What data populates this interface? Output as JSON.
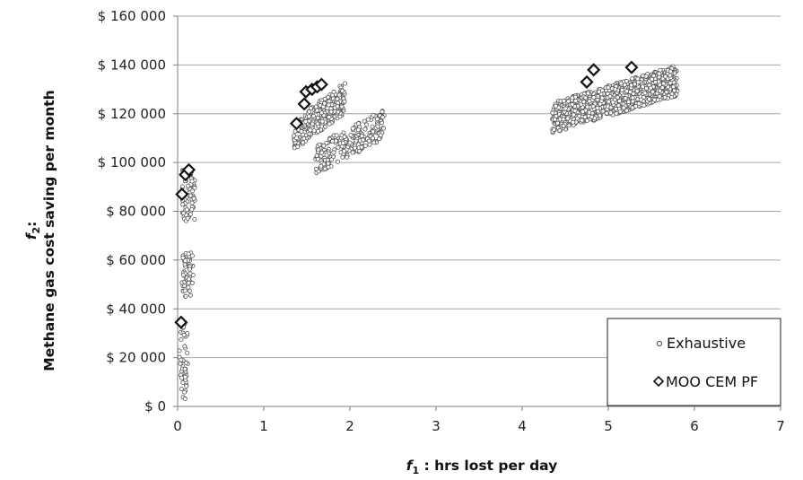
{
  "chart_data": {
    "type": "scatter",
    "title": "",
    "xlabel_var": "f",
    "xlabel_sub": "1",
    "xlabel_rest": " : hrs lost per day",
    "ylabel_var": "f",
    "ylabel_sub": "2",
    "ylabel_colon": ":",
    "ylabel_rest": "Methane gas cost saving per month",
    "xlim": [
      0,
      7
    ],
    "ylim": [
      0,
      160000
    ],
    "x_ticks": [
      0,
      1,
      2,
      3,
      4,
      5,
      6,
      7
    ],
    "x_tick_labels": [
      "0",
      "1",
      "2",
      "3",
      "4",
      "5",
      "6",
      "7"
    ],
    "y_ticks": [
      0,
      20000,
      40000,
      60000,
      80000,
      100000,
      120000,
      140000,
      160000
    ],
    "y_tick_labels": [
      "$ 0",
      "$ 20 000",
      "$ 40 000",
      "$ 60 000",
      "$ 80 000",
      "$ 100 000",
      "$ 120 000",
      "$ 140 000",
      "$ 160 000"
    ],
    "grid": "horizontal",
    "legend_position": "bottom-right",
    "legend": [
      {
        "label": "Exhaustive",
        "marker": "circle"
      },
      {
        "label": "MOO CEM PF",
        "marker": "diamond"
      }
    ],
    "series": [
      {
        "name": "Exhaustive",
        "marker": "small-open-circle",
        "note_clusters": true,
        "clusters": [
          {
            "x_range": [
              0.02,
              0.12
            ],
            "y_range": [
              3000,
              34000
            ],
            "count": 45
          },
          {
            "x_range": [
              0.05,
              0.18
            ],
            "y_range": [
              45000,
              63000
            ],
            "count": 60
          },
          {
            "x_range": [
              0.05,
              0.2
            ],
            "y_range": [
              76000,
              97000
            ],
            "count": 70
          },
          {
            "x_range": [
              1.35,
              1.95
            ],
            "y_range": [
              105000,
              133000
            ],
            "count": 260
          },
          {
            "x_range": [
              1.6,
              2.4
            ],
            "y_range": [
              95000,
              122000
            ],
            "count": 240
          },
          {
            "x_range": [
              4.35,
              5.8
            ],
            "y_range": [
              112000,
              140000
            ],
            "count": 900
          }
        ]
      },
      {
        "name": "MOO CEM PF",
        "marker": "open-diamond",
        "points": [
          {
            "x": 0.04,
            "y": 34500
          },
          {
            "x": 0.05,
            "y": 87000
          },
          {
            "x": 0.09,
            "y": 95000
          },
          {
            "x": 0.13,
            "y": 97000
          },
          {
            "x": 1.38,
            "y": 116000
          },
          {
            "x": 1.47,
            "y": 124000
          },
          {
            "x": 1.49,
            "y": 129000
          },
          {
            "x": 1.56,
            "y": 130000
          },
          {
            "x": 1.62,
            "y": 131000
          },
          {
            "x": 1.67,
            "y": 132000
          },
          {
            "x": 4.75,
            "y": 133000
          },
          {
            "x": 4.83,
            "y": 138000
          },
          {
            "x": 5.27,
            "y": 139000
          }
        ]
      }
    ]
  }
}
